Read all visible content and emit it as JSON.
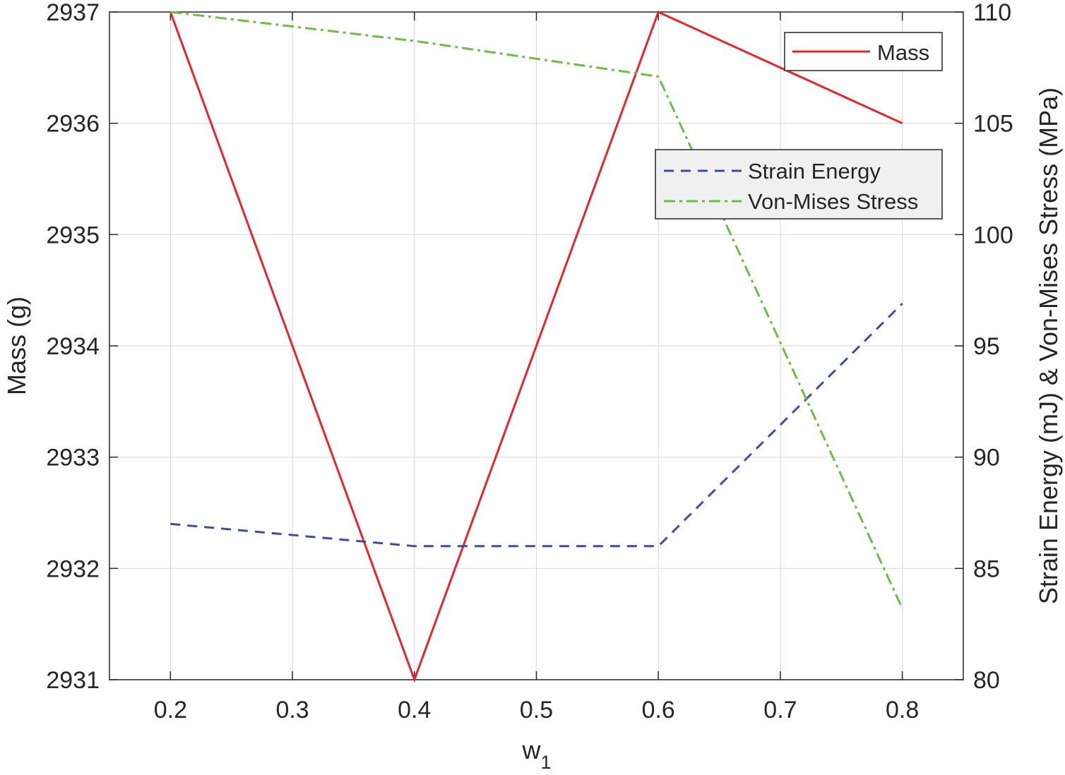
{
  "chart_data": {
    "type": "line",
    "xlabel": "w",
    "xlabel_subscript": "1",
    "ylabel_left": "Mass (g)",
    "ylabel_right": "Strain Energy (mJ) & Von-Mises Stress (MPa)",
    "xlim": [
      0.15,
      0.85
    ],
    "ylim_left": [
      2931,
      2937
    ],
    "ylim_right": [
      80,
      110
    ],
    "x_ticks": [
      "0.2",
      "0.3",
      "0.4",
      "0.5",
      "0.6",
      "0.7",
      "0.8"
    ],
    "y_ticks_left": [
      "2931",
      "2932",
      "2933",
      "2934",
      "2935",
      "2936",
      "2937"
    ],
    "y_ticks_right": [
      "80",
      "85",
      "90",
      "95",
      "100",
      "105",
      "110"
    ],
    "grid": true,
    "series": [
      {
        "name": "Mass",
        "axis": "left",
        "color": "#e8232a",
        "style": "solid",
        "x": [
          0.2,
          0.4,
          0.6,
          0.8
        ],
        "values": [
          2937,
          2931,
          2937,
          2936
        ]
      },
      {
        "name": "Strain Energy",
        "axis": "right",
        "color": "#3d4e9e",
        "style": "dashed",
        "x": [
          0.2,
          0.4,
          0.6,
          0.8
        ],
        "values": [
          87,
          86,
          86,
          96.9
        ]
      },
      {
        "name": "Von-Mises Stress",
        "axis": "right",
        "color": "#6bbd45",
        "style": "dashdot",
        "x": [
          0.2,
          0.4,
          0.6,
          0.8
        ],
        "values": [
          110,
          108.7,
          107.1,
          83.2
        ]
      }
    ],
    "legends": [
      {
        "position": "top-right",
        "entries": [
          "Mass"
        ]
      },
      {
        "position": "upper-right",
        "entries": [
          "Strain Energy",
          "Von-Mises Stress"
        ]
      }
    ]
  }
}
